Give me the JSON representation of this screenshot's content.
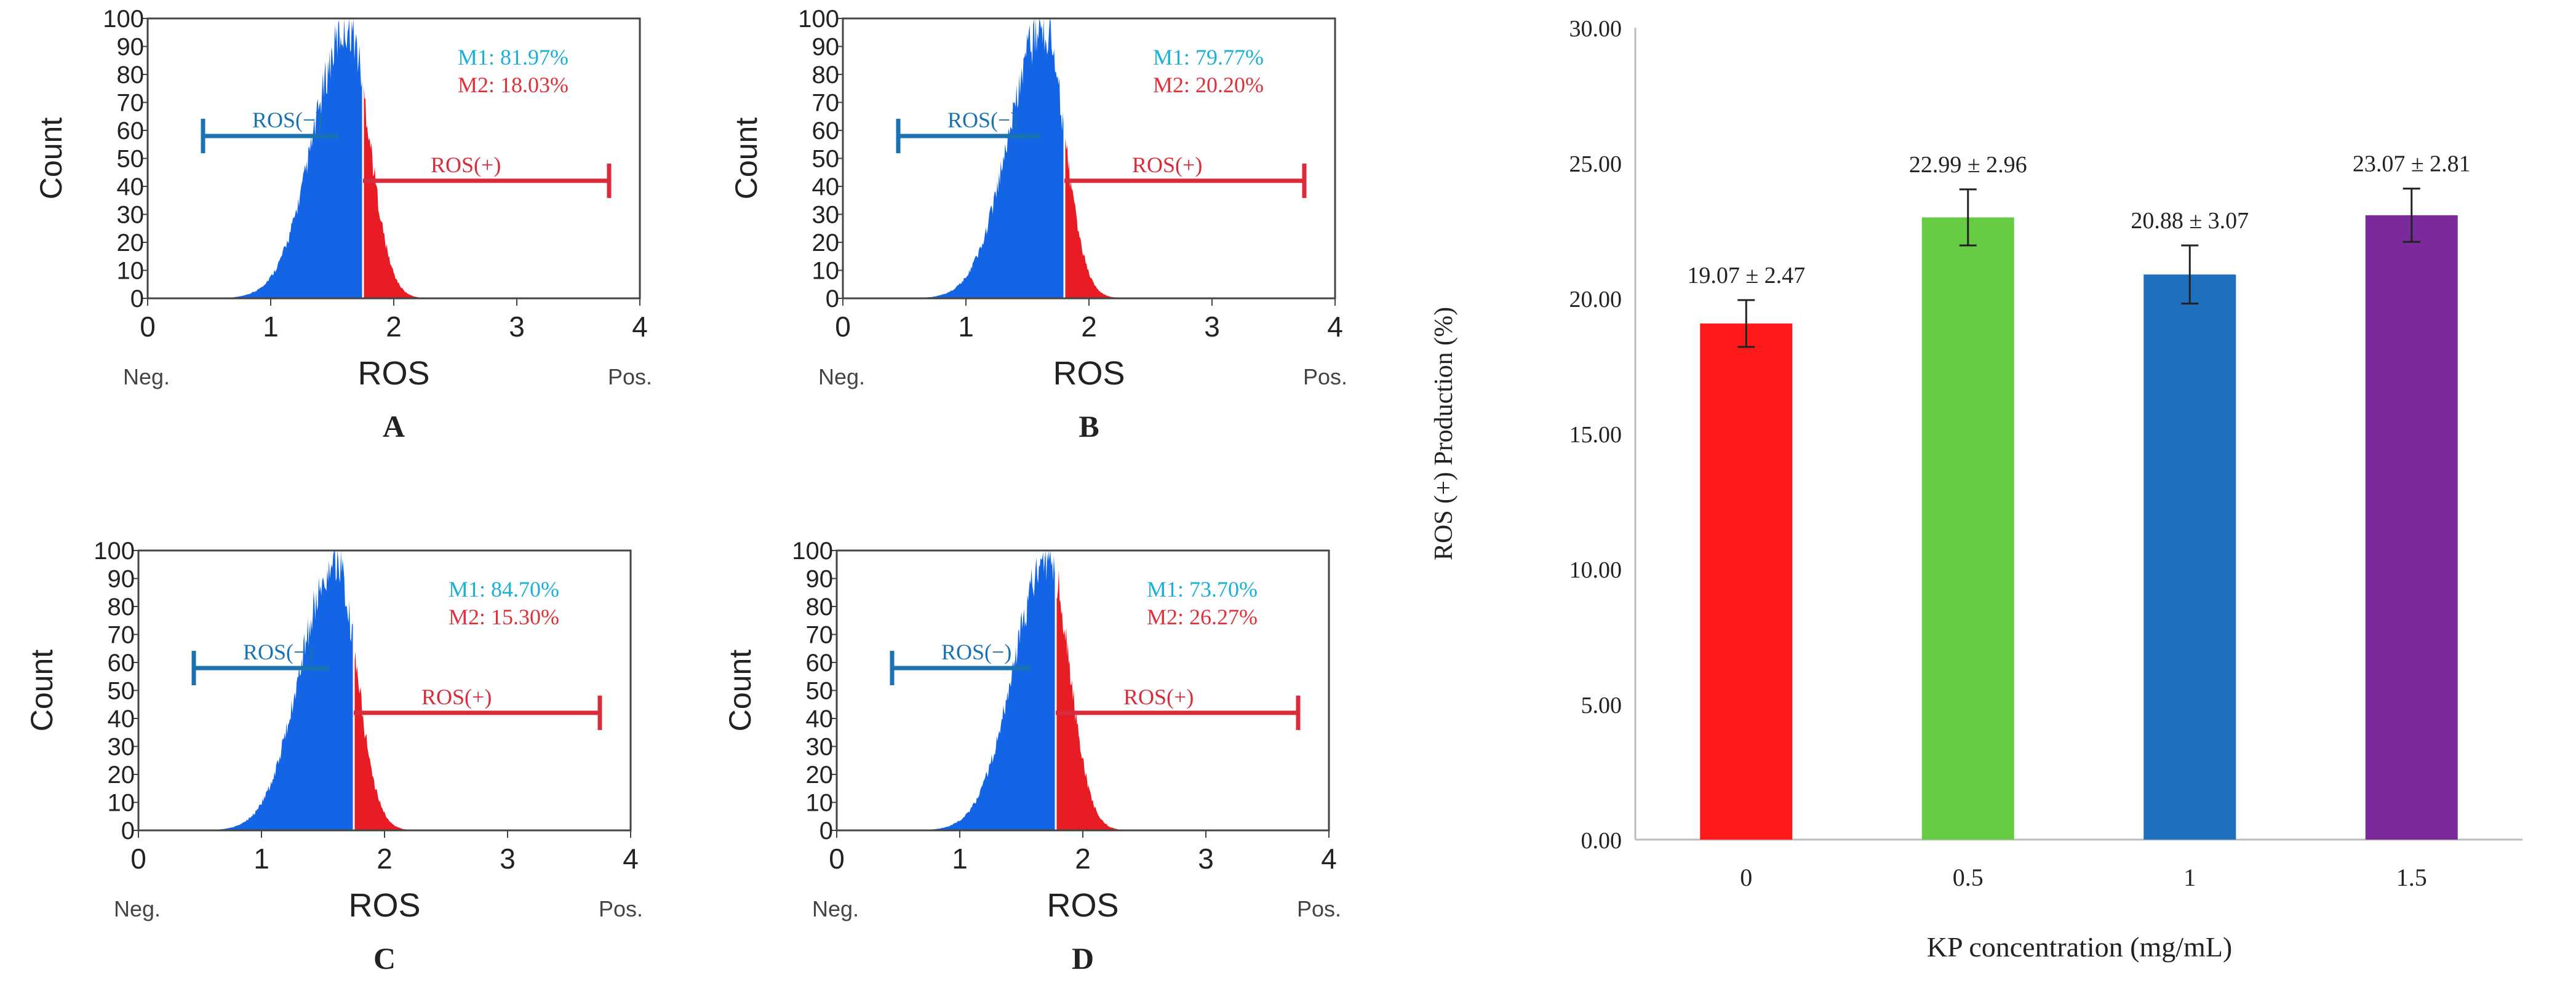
{
  "flow_panels": [
    {
      "letter": "A",
      "m1": "M1: 81.97%",
      "m2": "M2: 18.03%",
      "ylabel": "Count",
      "xlabel": "ROS",
      "neg_label": "Neg.",
      "pos_label": "Pos.",
      "gate_neg": "ROS(−)",
      "gate_pos": "ROS(+)",
      "yticks": [
        "0",
        "10",
        "20",
        "30",
        "40",
        "50",
        "60",
        "70",
        "80",
        "90",
        "100"
      ],
      "xticks": [
        "0",
        "1",
        "2",
        "3",
        "4"
      ],
      "threshold": 1.75,
      "peak": 1.63,
      "right_tail": 2.4
    },
    {
      "letter": "B",
      "m1": "M1: 79.77%",
      "m2": "M2: 20.20%",
      "ylabel": "Count",
      "xlabel": "ROS",
      "neg_label": "Neg.",
      "pos_label": "Pos.",
      "gate_neg": "ROS(−)",
      "gate_pos": "ROS(+)",
      "yticks": [
        "0",
        "10",
        "20",
        "30",
        "40",
        "50",
        "60",
        "70",
        "80",
        "90",
        "100"
      ],
      "xticks": [
        "0",
        "1",
        "2",
        "3",
        "4"
      ],
      "threshold": 1.8,
      "peak": 1.63,
      "right_tail": 2.45
    },
    {
      "letter": "C",
      "m1": "M1: 84.70%",
      "m2": "M2: 15.30%",
      "ylabel": "Count",
      "xlabel": "ROS",
      "neg_label": "Neg.",
      "pos_label": "Pos.",
      "gate_neg": "ROS(−)",
      "gate_pos": "ROS(+)",
      "yticks": [
        "0",
        "10",
        "20",
        "30",
        "40",
        "50",
        "60",
        "70",
        "80",
        "90",
        "100"
      ],
      "xticks": [
        "0",
        "1",
        "2",
        "3",
        "4"
      ],
      "threshold": 1.75,
      "peak": 1.6,
      "right_tail": 2.4
    },
    {
      "letter": "D",
      "m1": "M1: 73.70%",
      "m2": "M2: 26.27%",
      "ylabel": "Count",
      "xlabel": "ROS",
      "neg_label": "Neg.",
      "pos_label": "Pos.",
      "gate_neg": "ROS(−)",
      "gate_pos": "ROS(+)",
      "yticks": [
        "0",
        "10",
        "20",
        "30",
        "40",
        "50",
        "60",
        "70",
        "80",
        "90",
        "100"
      ],
      "xticks": [
        "0",
        "1",
        "2",
        "3",
        "4"
      ],
      "threshold": 1.78,
      "peak": 1.72,
      "right_tail": 2.35
    }
  ],
  "chart_data": {
    "type": "bar",
    "categories": [
      "0",
      "0.5",
      "1",
      "1.5"
    ],
    "values": [
      19.07,
      22.99,
      20.88,
      23.07
    ],
    "errors": [
      2.47,
      2.96,
      3.07,
      2.81
    ],
    "value_labels": [
      "19.07 ± 2.47",
      "22.99 ± 2.96",
      "20.88 ± 3.07",
      "23.07 ± 2.81"
    ],
    "colors": [
      "#ff1a1a",
      "#66cc44",
      "#1f6fbf",
      "#7a2a9a"
    ],
    "xlabel": "KP concentration (mg/mL)",
    "ylabel": "ROS (+) Production (%)",
    "ylim": [
      0,
      30
    ],
    "yticks": [
      "0.00",
      "5.00",
      "10.00",
      "15.00",
      "20.00",
      "25.00",
      "30.00"
    ],
    "grid": false,
    "legend": "none"
  },
  "colors": {
    "histogram_negative": "#1464e6",
    "histogram_positive": "#e81c24",
    "gate_negative": "#1a73b0",
    "gate_positive": "#d92b3a",
    "m1_text": "#1ab0d8",
    "m2_text": "#e0303a"
  }
}
